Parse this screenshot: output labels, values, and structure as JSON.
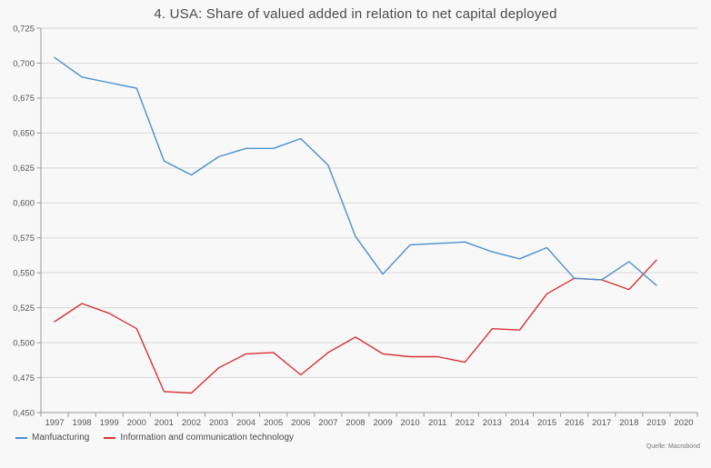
{
  "chart_data": {
    "type": "line",
    "title": "4. USA: Share of valued added in relation to net capital deployed",
    "xlabel": "",
    "ylabel": "",
    "ylim": [
      0.45,
      0.725
    ],
    "grid": true,
    "legend_position": "bottom-left",
    "x_categories": [
      "1997",
      "1998",
      "1999",
      "2000",
      "2001",
      "2002",
      "2003",
      "2004",
      "2005",
      "2006",
      "2007",
      "2008",
      "2009",
      "2010",
      "2011",
      "2012",
      "2013",
      "2014",
      "2015",
      "2016",
      "2017",
      "2018",
      "2019",
      "2020"
    ],
    "y_ticks": [
      {
        "label": "0,725",
        "value": 0.725
      },
      {
        "label": "0,700",
        "value": 0.7
      },
      {
        "label": "0,675",
        "value": 0.675
      },
      {
        "label": "0,650",
        "value": 0.65
      },
      {
        "label": "0,625",
        "value": 0.625
      },
      {
        "label": "0,600",
        "value": 0.6
      },
      {
        "label": "0,575",
        "value": 0.575
      },
      {
        "label": "0,550",
        "value": 0.55
      },
      {
        "label": "0,525",
        "value": 0.525
      },
      {
        "label": "0,500",
        "value": 0.5
      },
      {
        "label": "0,475",
        "value": 0.475
      },
      {
        "label": "0,450",
        "value": 0.45
      }
    ],
    "series": [
      {
        "name": "Manfuacturing",
        "color": "#4a8fd1",
        "x": [
          1997,
          1998,
          1999,
          2000,
          2001,
          2002,
          2003,
          2004,
          2005,
          2006,
          2007,
          2008,
          2009,
          2010,
          2011,
          2012,
          2013,
          2014,
          2015,
          2016,
          2017,
          2018,
          2019
        ],
        "values": [
          0.704,
          0.69,
          0.686,
          0.682,
          0.63,
          0.62,
          0.633,
          0.639,
          0.639,
          0.646,
          0.627,
          0.576,
          0.549,
          0.57,
          0.571,
          0.572,
          0.565,
          0.56,
          0.568,
          0.546,
          0.545,
          0.558,
          0.541
        ]
      },
      {
        "name": "Information and communication technology",
        "color": "#d63333",
        "x": [
          1997,
          1998,
          1999,
          2000,
          2001,
          2002,
          2003,
          2004,
          2005,
          2006,
          2007,
          2008,
          2009,
          2010,
          2011,
          2012,
          2013,
          2014,
          2015,
          2016,
          2017,
          2018,
          2019
        ],
        "values": [
          0.515,
          0.528,
          0.521,
          0.51,
          0.465,
          0.464,
          0.482,
          0.492,
          0.493,
          0.477,
          0.493,
          0.504,
          0.492,
          0.49,
          0.49,
          0.486,
          0.51,
          0.509,
          0.535,
          0.546,
          0.545,
          0.538,
          0.559
        ]
      }
    ]
  },
  "source_label": "Quelle: Macrobond",
  "colors": {
    "background": "#f8f8f8",
    "gridline": "#d9d9d9",
    "axis": "#999999",
    "tick_text": "#555555",
    "title_text": "#4a4a4a",
    "legend_text": "#4a4a4a"
  }
}
